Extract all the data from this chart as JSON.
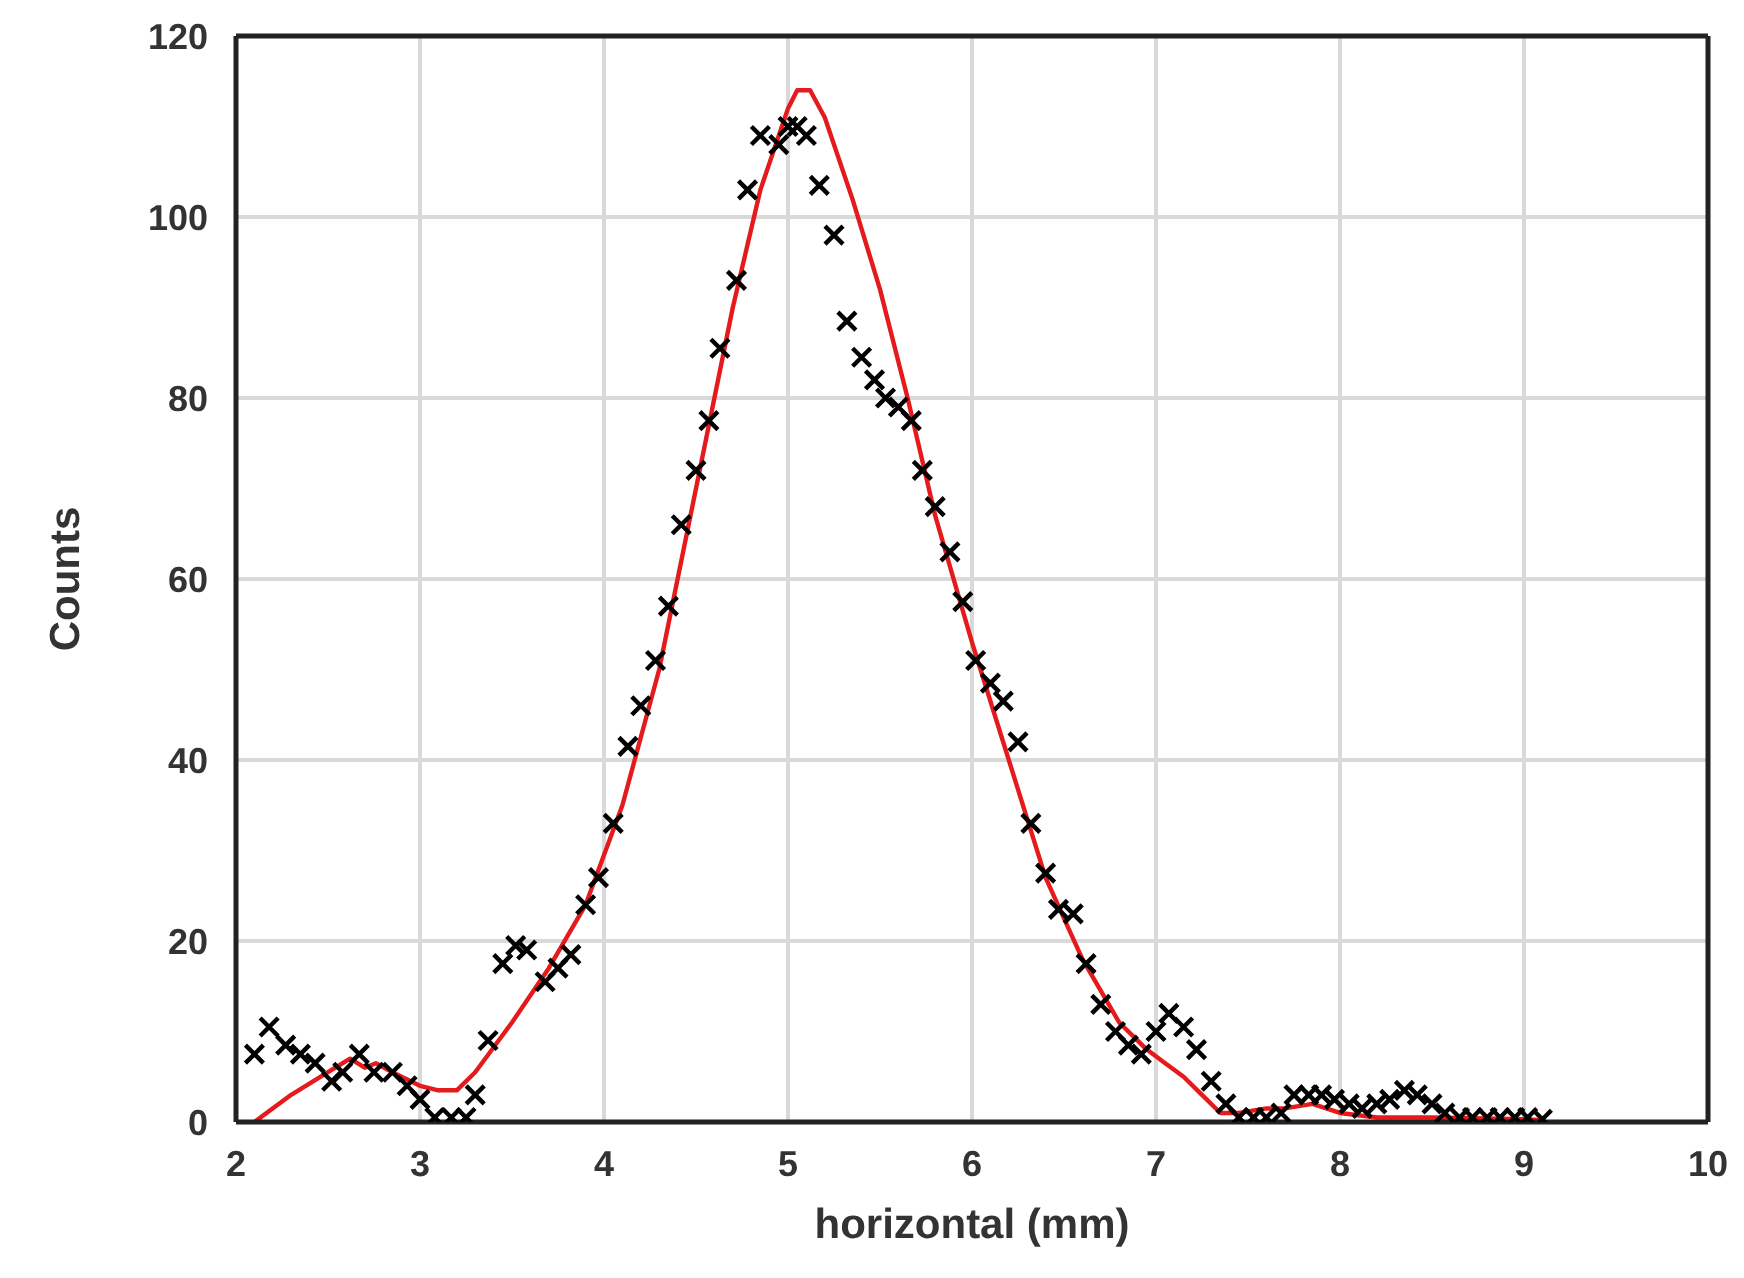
{
  "chart_data": {
    "type": "scatter",
    "xlabel": "horizontal (mm)",
    "ylabel": "Counts",
    "xlim": [
      2,
      10
    ],
    "xticks": [
      2,
      3,
      4,
      5,
      6,
      7,
      8,
      9,
      10
    ],
    "ylim": [
      0,
      120
    ],
    "yticks": [
      0,
      20,
      40,
      60,
      80,
      100,
      120
    ],
    "grid": true,
    "series": [
      {
        "color": "#000000",
        "marker": "cross",
        "x": [
          2.1,
          2.18,
          2.27,
          2.35,
          2.43,
          2.52,
          2.58,
          2.67,
          2.75,
          2.85,
          2.93,
          3.0,
          3.08,
          3.17,
          3.25,
          3.3,
          3.37,
          3.45,
          3.52,
          3.58,
          3.68,
          3.75,
          3.82,
          3.9,
          3.97,
          4.05,
          4.13,
          4.2,
          4.28,
          4.35,
          4.42,
          4.5,
          4.57,
          4.63,
          4.72,
          4.78,
          4.85,
          4.95,
          5.0,
          5.05,
          5.1,
          5.17,
          5.25,
          5.32,
          5.4,
          5.47,
          5.53,
          5.6,
          5.67,
          5.73,
          5.8,
          5.88,
          5.95,
          6.02,
          6.1,
          6.17,
          6.25,
          6.32,
          6.4,
          6.47,
          6.55,
          6.62,
          6.7,
          6.78,
          6.85,
          6.92,
          7.0,
          7.07,
          7.15,
          7.22,
          7.3,
          7.38,
          7.45,
          7.53,
          7.6,
          7.68,
          7.75,
          7.83,
          7.9,
          7.97,
          8.05,
          8.12,
          8.2,
          8.27,
          8.35,
          8.42,
          8.5,
          8.57,
          8.65,
          8.72,
          8.8,
          8.87,
          8.95,
          9.02,
          9.1
        ],
        "values": [
          7.5,
          10.5,
          8.5,
          7.5,
          6.5,
          4.5,
          5.5,
          7.5,
          5.5,
          5.5,
          4,
          2.5,
          0.5,
          0.5,
          0.5,
          3,
          9,
          17.5,
          19.5,
          19,
          15.5,
          17,
          18.5,
          24,
          27,
          33,
          41.5,
          46,
          51,
          57,
          66,
          72,
          77.5,
          85.5,
          93,
          103,
          109,
          108,
          110,
          110,
          109,
          103.5,
          98,
          88.5,
          84.5,
          82,
          80,
          79,
          77.5,
          72,
          68,
          63,
          57.5,
          51,
          48.5,
          46.5,
          42,
          33,
          27.5,
          23.5,
          23,
          17.5,
          13,
          10,
          8.5,
          7.5,
          10,
          12,
          10.5,
          8,
          4.5,
          2,
          0.5,
          0.5,
          0.5,
          1,
          3,
          3,
          3,
          2.5,
          2,
          1.5,
          2,
          2.5,
          3.5,
          3,
          2,
          1,
          0.5,
          0.5,
          0.5,
          0.5,
          0.5,
          0.5,
          0.3
        ]
      },
      {
        "type": "line",
        "color": "#e41a1c",
        "marker": "none",
        "line_style": "solid",
        "x": [
          2.1,
          2.3,
          2.5,
          2.62,
          2.7,
          2.76,
          2.85,
          3.0,
          3.1,
          3.2,
          3.3,
          3.5,
          3.7,
          3.9,
          4.1,
          4.3,
          4.5,
          4.7,
          4.85,
          5.0,
          5.05,
          5.12,
          5.2,
          5.35,
          5.5,
          5.65,
          5.8,
          6.0,
          6.2,
          6.4,
          6.6,
          6.8,
          6.95,
          7.05,
          7.15,
          7.25,
          7.35,
          7.45,
          7.6,
          7.7,
          7.85,
          8.0,
          8.2,
          8.5,
          9.0,
          9.1
        ],
        "values": [
          0,
          3,
          5.5,
          7,
          6,
          6.5,
          5.5,
          4,
          3.5,
          3.5,
          5.5,
          11,
          17,
          24,
          35,
          50,
          70,
          90,
          103,
          112,
          114,
          114,
          111,
          102,
          92,
          80,
          67,
          53,
          40,
          27,
          18,
          11,
          8,
          6.5,
          5,
          3,
          1,
          1,
          1.5,
          1.5,
          2,
          1,
          0.5,
          0.5,
          0.3,
          0.2
        ]
      }
    ]
  }
}
